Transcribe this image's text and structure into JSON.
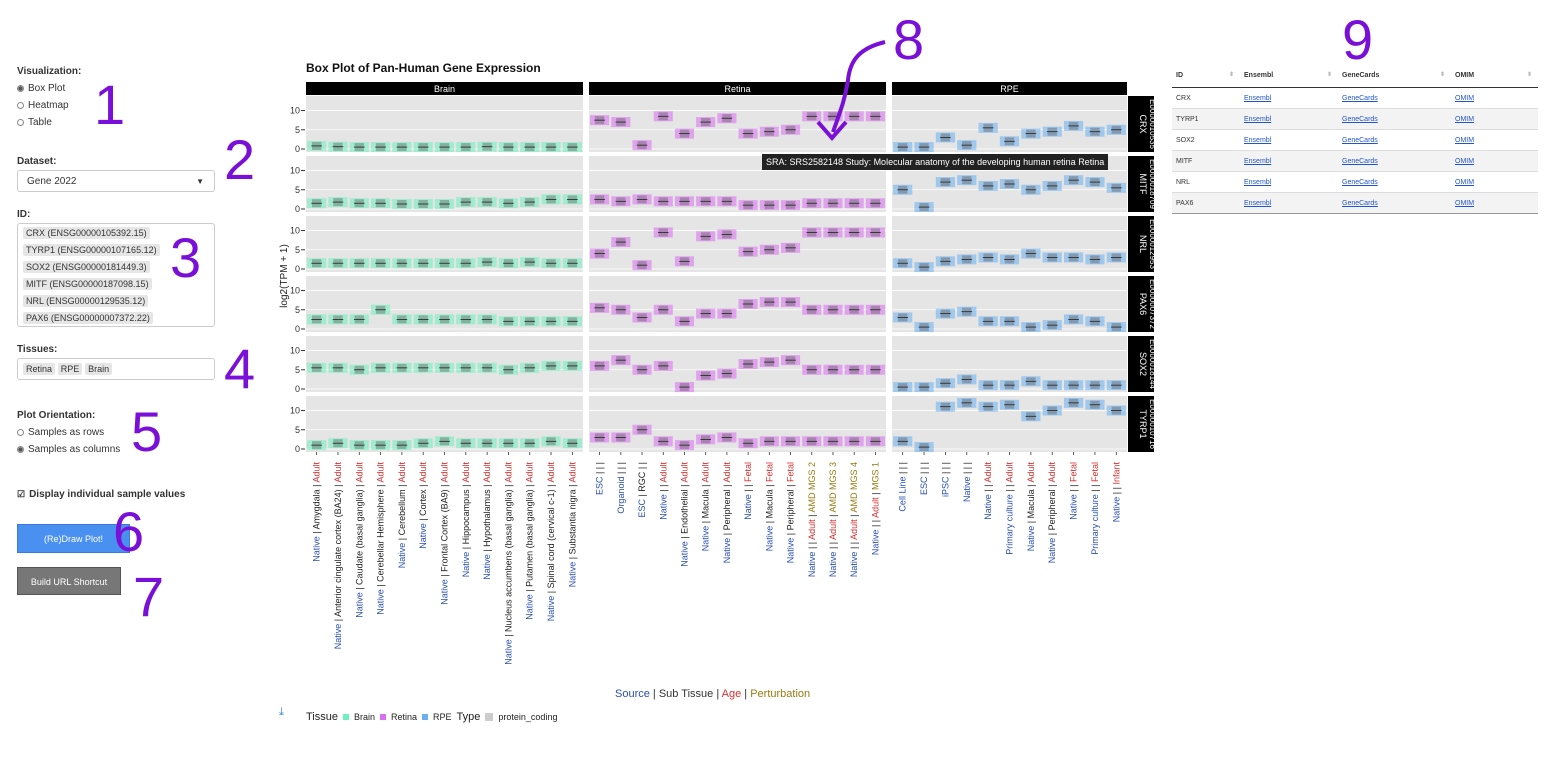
{
  "sidebar": {
    "visualization": {
      "label": "Visualization:",
      "options": [
        "Box Plot",
        "Heatmap",
        "Table"
      ],
      "selected": "Box Plot"
    },
    "dataset": {
      "label": "Dataset:",
      "value": "Gene 2022"
    },
    "id": {
      "label": "ID:",
      "items": [
        "CRX (ENSG00000105392.15)",
        "TYRP1 (ENSG00000107165.12)",
        "SOX2 (ENSG00000181449.3)",
        "MITF (ENSG00000187098.15)",
        "NRL (ENSG00000129535.12)",
        "PAX6 (ENSG00000007372.22)"
      ]
    },
    "tissues": {
      "label": "Tissues:",
      "items": [
        "Retina",
        "RPE",
        "Brain"
      ]
    },
    "orientation": {
      "label": "Plot Orientation:",
      "options": [
        "Samples as rows",
        "Samples as columns"
      ],
      "selected": "Samples as columns"
    },
    "display_samples": {
      "label": "Display individual sample values",
      "checked": true
    },
    "draw_button": "(Re)Draw Plot!",
    "url_button": "Build URL Shortcut"
  },
  "annotations": [
    "1",
    "2",
    "3",
    "4",
    "5",
    "6",
    "7",
    "8",
    "9"
  ],
  "chart_data": {
    "type": "box",
    "title": "Box Plot of Pan-Human Gene Expression",
    "ylabel": "log2(TPM + 1)",
    "ylim": [
      0,
      13
    ],
    "yticks": [
      0,
      5,
      10
    ],
    "facets": [
      "Brain",
      "Retina",
      "RPE"
    ],
    "genes": [
      {
        "name": "CRX",
        "id": "ENSG00000105392"
      },
      {
        "name": "MITF",
        "id": "ENSG00000187098"
      },
      {
        "name": "NRL",
        "id": "ENSG00000129535"
      },
      {
        "name": "PAX6",
        "id": "ENSG00000007372"
      },
      {
        "name": "SOX2",
        "id": "ENSG00000181449"
      },
      {
        "name": "TYRP1",
        "id": "ENSG00000107165"
      }
    ],
    "strip_labels": [
      "CRX\nE0000010535",
      "MITF\nE0000018709",
      "NRL\nE0000012953",
      "PAX6\nE0000007372",
      "SOX2\nE0000018144",
      "TYRP1\nE0000010716"
    ],
    "categories": {
      "Brain": [
        [
          [
            "Native",
            "src"
          ],
          [
            "Amygdala",
            "sub"
          ],
          [
            "Adult",
            "age"
          ]
        ],
        [
          [
            "Native",
            "src"
          ],
          [
            "Anterior cingulate cortex (BA24)",
            "sub"
          ],
          [
            "Adult",
            "age"
          ]
        ],
        [
          [
            "Native",
            "src"
          ],
          [
            "Caudate (basal ganglia)",
            "sub"
          ],
          [
            "Adult",
            "age"
          ]
        ],
        [
          [
            "Native",
            "src"
          ],
          [
            "Cerebellar Hemisphere",
            "sub"
          ],
          [
            "Adult",
            "age"
          ]
        ],
        [
          [
            "Native",
            "src"
          ],
          [
            "Cerebellum",
            "sub"
          ],
          [
            "Adult",
            "age"
          ]
        ],
        [
          [
            "Native",
            "src"
          ],
          [
            "Cortex",
            "sub"
          ],
          [
            "Adult",
            "age"
          ]
        ],
        [
          [
            "Native",
            "src"
          ],
          [
            "Frontal Cortex (BA9)",
            "sub"
          ],
          [
            "Adult",
            "age"
          ]
        ],
        [
          [
            "Native",
            "src"
          ],
          [
            "Hippocampus",
            "sub"
          ],
          [
            "Adult",
            "age"
          ]
        ],
        [
          [
            "Native",
            "src"
          ],
          [
            "Hypothalamus",
            "sub"
          ],
          [
            "Adult",
            "age"
          ]
        ],
        [
          [
            "Native",
            "src"
          ],
          [
            "Nucleus accumbens (basal ganglia)",
            "sub"
          ],
          [
            "Adult",
            "age"
          ]
        ],
        [
          [
            "Native",
            "src"
          ],
          [
            "Putamen (basal ganglia)",
            "sub"
          ],
          [
            "Adult",
            "age"
          ]
        ],
        [
          [
            "Native",
            "src"
          ],
          [
            "Spinal cord (cervical c-1)",
            "sub"
          ],
          [
            "Adult",
            "age"
          ]
        ],
        [
          [
            "Native",
            "src"
          ],
          [
            "Substantia nigra",
            "sub"
          ],
          [
            "Adult",
            "age"
          ]
        ]
      ],
      "Retina": [
        [
          [
            "ESC",
            "src"
          ],
          [
            "",
            "sub"
          ],
          [
            "",
            "age"
          ],
          [
            "",
            "pert"
          ]
        ],
        [
          [
            "Organoid",
            "src"
          ],
          [
            "",
            "sub"
          ],
          [
            "",
            "age"
          ],
          [
            "",
            "pert"
          ]
        ],
        [
          [
            "ESC",
            "src"
          ],
          [
            "RGC",
            "sub"
          ],
          [
            "",
            "age"
          ],
          [
            "",
            "pert"
          ]
        ],
        [
          [
            "Native",
            "src"
          ],
          [
            "",
            "sub"
          ],
          [
            "Adult",
            "age"
          ]
        ],
        [
          [
            "Native",
            "src"
          ],
          [
            "Endothelial",
            "sub"
          ],
          [
            "Adult",
            "age"
          ]
        ],
        [
          [
            "Native",
            "src"
          ],
          [
            "Macula",
            "sub"
          ],
          [
            "Adult",
            "age"
          ]
        ],
        [
          [
            "Native",
            "src"
          ],
          [
            "Peripheral",
            "sub"
          ],
          [
            "Adult",
            "age"
          ]
        ],
        [
          [
            "Native",
            "src"
          ],
          [
            "",
            "sub"
          ],
          [
            "Fetal",
            "age"
          ]
        ],
        [
          [
            "Native",
            "src"
          ],
          [
            "Macula",
            "sub"
          ],
          [
            "Fetal",
            "age"
          ]
        ],
        [
          [
            "Native",
            "src"
          ],
          [
            "Peripheral",
            "sub"
          ],
          [
            "Fetal",
            "age"
          ]
        ],
        [
          [
            "Native",
            "src"
          ],
          [
            "",
            "sub"
          ],
          [
            "Adult",
            "age"
          ],
          [
            "AMD MGS 2",
            "pert"
          ]
        ],
        [
          [
            "Native",
            "src"
          ],
          [
            "",
            "sub"
          ],
          [
            "Adult",
            "age"
          ],
          [
            "AMD MGS 3",
            "pert"
          ]
        ],
        [
          [
            "Native",
            "src"
          ],
          [
            "",
            "sub"
          ],
          [
            "Adult",
            "age"
          ],
          [
            "AMD MGS 4",
            "pert"
          ]
        ],
        [
          [
            "Native",
            "src"
          ],
          [
            "",
            "sub"
          ],
          [
            "Adult",
            "age"
          ],
          [
            "MGS 1",
            "pert"
          ]
        ]
      ],
      "RPE": [
        [
          [
            "Cell Line",
            "src"
          ],
          [
            "",
            "sub"
          ],
          [
            "",
            "age"
          ],
          [
            "",
            "pert"
          ]
        ],
        [
          [
            "ESC",
            "src"
          ],
          [
            "",
            "sub"
          ],
          [
            "",
            "age"
          ],
          [
            "",
            "pert"
          ]
        ],
        [
          [
            "iPSC",
            "src"
          ],
          [
            "",
            "sub"
          ],
          [
            "",
            "age"
          ],
          [
            "",
            "pert"
          ]
        ],
        [
          [
            "Native",
            "src"
          ],
          [
            "",
            "sub"
          ],
          [
            "",
            "age"
          ],
          [
            "",
            "pert"
          ]
        ],
        [
          [
            "Native",
            "src"
          ],
          [
            "",
            "sub"
          ],
          [
            "Adult",
            "age"
          ]
        ],
        [
          [
            "Primary culture",
            "src"
          ],
          [
            "",
            "sub"
          ],
          [
            "Adult",
            "age"
          ]
        ],
        [
          [
            "Native",
            "src"
          ],
          [
            "Macula",
            "sub"
          ],
          [
            "Adult",
            "age"
          ]
        ],
        [
          [
            "Native",
            "src"
          ],
          [
            "Peripheral",
            "sub"
          ],
          [
            "Adult",
            "age"
          ]
        ],
        [
          [
            "Native",
            "src"
          ],
          [
            "",
            "sub"
          ],
          [
            "Fetal",
            "age"
          ]
        ],
        [
          [
            "Primary culture",
            "src"
          ],
          [
            "",
            "sub"
          ],
          [
            "Fetal",
            "age"
          ]
        ],
        [
          [
            "Native",
            "src"
          ],
          [
            "",
            "sub"
          ],
          [
            "Infant",
            "age"
          ]
        ]
      ]
    },
    "values": {
      "Brain": {
        "CRX": [
          0.8,
          0.6,
          0.5,
          0.5,
          0.5,
          0.5,
          0.5,
          0.5,
          0.6,
          0.5,
          0.5,
          0.5,
          0.5
        ],
        "MITF": [
          1.5,
          1.8,
          1.5,
          1.5,
          1.3,
          1.3,
          1.3,
          1.8,
          1.8,
          1.5,
          1.8,
          2.5,
          2.5
        ],
        "NRL": [
          1.5,
          1.5,
          1.5,
          1.5,
          1.5,
          1.5,
          1.5,
          1.5,
          1.8,
          1.5,
          1.8,
          1.5,
          1.5
        ],
        "PAX6": [
          2.5,
          2.5,
          2.5,
          5.0,
          2.5,
          2.5,
          2.5,
          2.5,
          2.5,
          2.0,
          2.0,
          2.0,
          2.0
        ],
        "SOX2": [
          5.5,
          5.5,
          5.0,
          5.5,
          5.5,
          5.5,
          5.5,
          5.5,
          5.5,
          5.0,
          5.5,
          6.0,
          6.0
        ],
        "TYRP1": [
          1.0,
          1.5,
          1.0,
          1.0,
          1.0,
          1.5,
          2.0,
          1.5,
          1.5,
          1.5,
          1.5,
          2.0,
          1.5
        ]
      },
      "Retina": {
        "CRX": [
          7.5,
          7.0,
          1.0,
          8.5,
          4.0,
          7.0,
          8.0,
          4.0,
          4.5,
          5.0,
          8.5,
          8.5,
          8.5,
          8.5
        ],
        "MITF": [
          2.5,
          2.0,
          2.5,
          2.0,
          2.0,
          2.0,
          2.0,
          1.0,
          1.0,
          1.0,
          1.5,
          1.5,
          1.5,
          1.5
        ],
        "NRL": [
          4.0,
          7.0,
          1.0,
          9.5,
          2.0,
          8.5,
          9.0,
          4.5,
          5.0,
          5.5,
          9.5,
          9.5,
          9.5,
          9.5
        ],
        "PAX6": [
          5.5,
          5.0,
          3.0,
          5.0,
          2.0,
          4.0,
          4.0,
          6.5,
          7.0,
          7.0,
          5.0,
          5.0,
          5.0,
          5.0
        ],
        "SOX2": [
          6.0,
          7.5,
          5.0,
          6.0,
          0.5,
          3.5,
          4.0,
          6.5,
          7.0,
          7.5,
          5.0,
          5.0,
          5.0,
          5.0
        ],
        "TYRP1": [
          3.0,
          3.0,
          5.0,
          2.0,
          1.0,
          2.5,
          3.0,
          1.5,
          2.0,
          2.0,
          2.0,
          2.0,
          2.0,
          2.0
        ]
      },
      "RPE": {
        "CRX": [
          0.5,
          0.5,
          3.0,
          1.0,
          5.5,
          2.0,
          4.0,
          4.5,
          6.0,
          4.5,
          5.0
        ],
        "MITF": [
          5.0,
          0.5,
          7.0,
          7.5,
          6.0,
          6.5,
          5.0,
          6.0,
          7.5,
          7.0,
          5.5
        ],
        "NRL": [
          1.5,
          0.5,
          2.0,
          2.5,
          3.0,
          2.5,
          4.0,
          3.0,
          3.0,
          2.5,
          3.0
        ],
        "PAX6": [
          3.0,
          0.5,
          4.0,
          4.5,
          2.0,
          2.0,
          0.5,
          1.0,
          2.5,
          2.0,
          0.5
        ],
        "SOX2": [
          0.5,
          0.5,
          1.5,
          2.5,
          1.0,
          1.0,
          2.0,
          1.0,
          1.0,
          1.0,
          1.0
        ],
        "TYRP1": [
          2.0,
          0.5,
          11.0,
          12.0,
          11.0,
          11.5,
          8.5,
          10.0,
          12.0,
          11.5,
          10.0
        ]
      }
    },
    "series": [
      {
        "name": "Brain",
        "color": "#6ef0c0"
      },
      {
        "name": "Retina",
        "color": "#d86ef0"
      },
      {
        "name": "RPE",
        "color": "#6ab0f0"
      }
    ],
    "xlegend": [
      {
        "text": "Source",
        "color": "#2a4fb8"
      },
      {
        "text": " | ",
        "color": "#222222"
      },
      {
        "text": "Sub Tissue",
        "color": "#222222"
      },
      {
        "text": " | ",
        "color": "#222222"
      },
      {
        "text": "Age",
        "color": "#d83030"
      },
      {
        "text": " | ",
        "color": "#222222"
      },
      {
        "text": "Perturbation",
        "color": "#9a7a10"
      }
    ],
    "label_colors": {
      "src": "#2a4fb8",
      "sub": "#222222",
      "age": "#d83030",
      "pert": "#9a7a10"
    },
    "legend": {
      "tissue_title": "Tissue",
      "items": [
        "Brain",
        "Retina",
        "RPE"
      ],
      "type_title": "Type",
      "type_item": "protein_coding"
    },
    "tooltip": "SRA: SRS2582148 Study: Molecular anatomy of the developing human retina Retina"
  },
  "table": {
    "columns": [
      "ID",
      "Ensembl",
      "GeneCards",
      "OMIM"
    ],
    "rows": [
      [
        "CRX",
        "Ensembl",
        "GeneCards",
        "OMIM"
      ],
      [
        "TYRP1",
        "Ensembl",
        "GeneCards",
        "OMIM"
      ],
      [
        "SOX2",
        "Ensembl",
        "GeneCards",
        "OMIM"
      ],
      [
        "MITF",
        "Ensembl",
        "GeneCards",
        "OMIM"
      ],
      [
        "NRL",
        "Ensembl",
        "GeneCards",
        "OMIM"
      ],
      [
        "PAX6",
        "Ensembl",
        "GeneCards",
        "OMIM"
      ]
    ]
  },
  "colors": {
    "accent": "#7a10d8",
    "primary_button": "#4a90f0",
    "secondary_button": "#777777"
  }
}
